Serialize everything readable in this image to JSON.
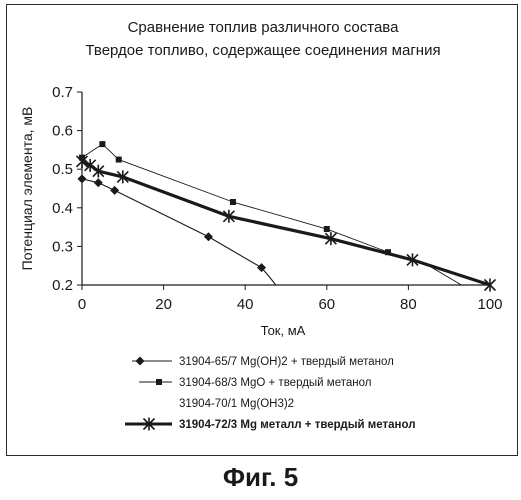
{
  "chart_data": {
    "type": "line",
    "title_lines": [
      "Сравнение топлив различного состава",
      "Твердое топливо, содержащее соединения магния"
    ],
    "xlabel": "Ток, мА",
    "ylabel": "Потенциал элемента, мВ",
    "xlim": [
      0,
      100
    ],
    "ylim": [
      0.2,
      0.7
    ],
    "x_ticks": [
      "0",
      "20",
      "40",
      "60",
      "80",
      "100"
    ],
    "y_ticks": [
      "0.2",
      "0.3",
      "0.4",
      "0.5",
      "0.6",
      "0.7"
    ],
    "grid": false,
    "legend_position": "bottom",
    "series": [
      {
        "name": "31904-65/7 Mg(OH)2 + твердый метанол",
        "marker": "diamond",
        "points": [
          [
            0,
            0.475
          ],
          [
            4,
            0.465
          ],
          [
            8,
            0.445
          ],
          [
            31,
            0.325
          ],
          [
            44,
            0.245
          ]
        ],
        "tail": [
          [
            44,
            0.245
          ],
          [
            46,
            0.22
          ],
          [
            47.5,
            0.2
          ]
        ]
      },
      {
        "name": "31904-68/3 MgO + твердый метанол",
        "marker": "square",
        "points": [
          [
            0,
            0.53
          ],
          [
            5,
            0.565
          ],
          [
            9,
            0.525
          ],
          [
            37,
            0.415
          ],
          [
            60,
            0.345
          ],
          [
            75,
            0.285
          ]
        ],
        "tail": [
          [
            75,
            0.285
          ],
          [
            85,
            0.25
          ],
          [
            93,
            0.2
          ]
        ]
      },
      {
        "name": "31904-70/1 Mg(OH3)2",
        "marker": "none",
        "points": [],
        "tail": []
      },
      {
        "name": "31904-72/3 Mg металл + твердый метанол",
        "marker": "star",
        "points": [
          [
            0,
            0.52
          ],
          [
            2,
            0.51
          ],
          [
            4,
            0.495
          ],
          [
            10,
            0.48
          ],
          [
            36,
            0.378
          ],
          [
            61,
            0.32
          ],
          [
            81,
            0.265
          ],
          [
            100,
            0.2
          ]
        ],
        "tail": []
      }
    ],
    "legend": [
      {
        "id": "a",
        "prefix": "31904-65/7",
        "formula": "Mg(OH)2",
        "rest": "+ твердый метанол"
      },
      {
        "id": "b",
        "prefix": "31904-68/3",
        "formula": "MgO",
        "rest": "+ твердый метанол"
      },
      {
        "id": "c",
        "prefix": "31904-70/1",
        "formula": "Mg(OH3)2",
        "rest": ""
      },
      {
        "id": "d",
        "prefix": "31904-72/3",
        "formula": "Mg",
        "rest": "металл + твердый метанол"
      }
    ]
  },
  "caption": "Фиг. 5"
}
